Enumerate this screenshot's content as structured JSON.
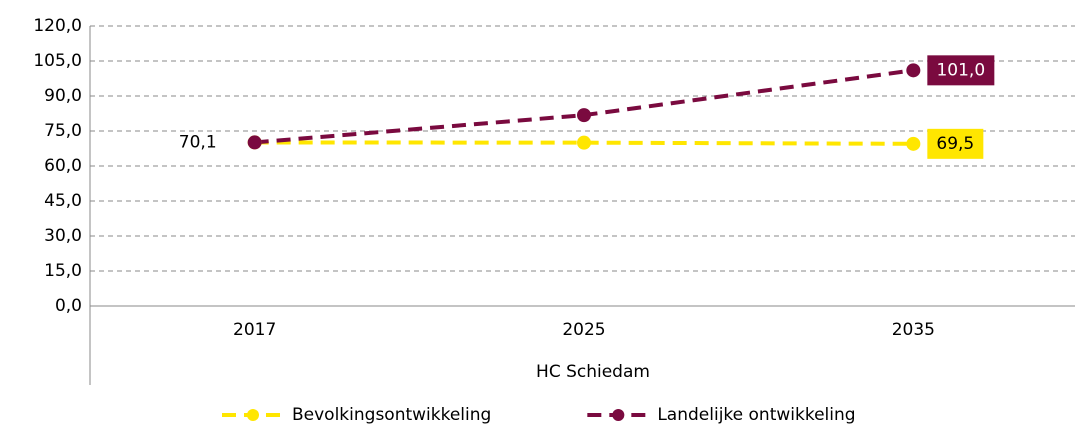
{
  "chart_data": {
    "type": "line",
    "categories": [
      "2017",
      "2025",
      "2035"
    ],
    "group_label": "HC Schiedam",
    "series": [
      {
        "name": "Bevolkingsontwikkeling",
        "color": "#ffe600",
        "values": [
          70.1,
          70.0,
          69.5
        ],
        "value_labels": [
          "70,1",
          null,
          "69,5"
        ]
      },
      {
        "name": "Landelijke ontwikkeling",
        "color": "#7a0a3f",
        "values": [
          70.1,
          81.8,
          101.0
        ],
        "value_labels": [
          null,
          null,
          "101,0"
        ]
      }
    ],
    "ylim": [
      0,
      120
    ],
    "yticks": [
      {
        "value": 0,
        "label": "0,0"
      },
      {
        "value": 15,
        "label": "15,0"
      },
      {
        "value": 30,
        "label": "30,0"
      },
      {
        "value": 45,
        "label": "45,0"
      },
      {
        "value": 60,
        "label": "60,0"
      },
      {
        "value": 75,
        "label": "75,0"
      },
      {
        "value": 90,
        "label": "90,0"
      },
      {
        "value": 105,
        "label": "105,0"
      },
      {
        "value": 120,
        "label": "120,0"
      }
    ],
    "grid": true,
    "legend": "bottom"
  }
}
